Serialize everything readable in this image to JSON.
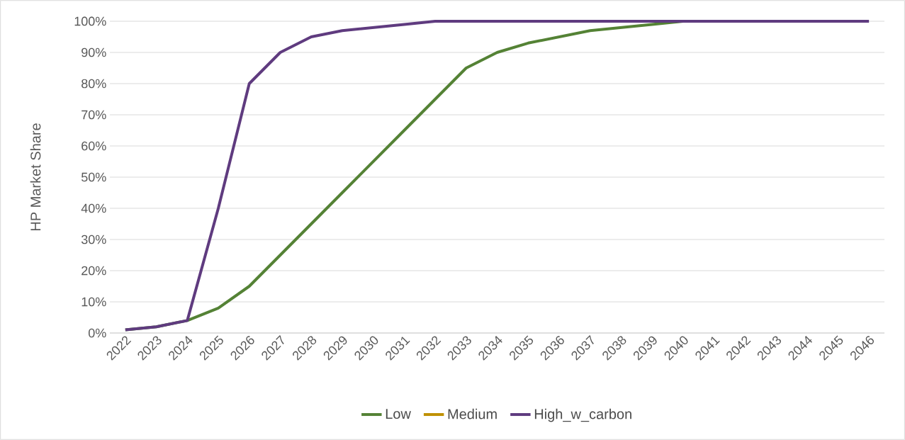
{
  "chart_data": {
    "type": "line",
    "ylabel": "HP Market Share",
    "categories": [
      "2022",
      "2023",
      "2024",
      "2025",
      "2026",
      "2027",
      "2028",
      "2029",
      "2030",
      "2031",
      "2032",
      "2033",
      "2034",
      "2035",
      "2036",
      "2037",
      "2038",
      "2039",
      "2040",
      "2041",
      "2042",
      "2043",
      "2044",
      "2045",
      "2046"
    ],
    "series": [
      {
        "name": "Low",
        "color": "#548235",
        "values": [
          1,
          2,
          4,
          8,
          15,
          25,
          35,
          45,
          55,
          65,
          75,
          85,
          90,
          93,
          95,
          97,
          98,
          99,
          100,
          100,
          null,
          null,
          null,
          null,
          null
        ]
      },
      {
        "name": "Medium",
        "color": "#bf9000",
        "values": [
          null,
          null,
          null,
          null,
          null,
          null,
          null,
          null,
          null,
          null,
          null,
          null,
          null,
          null,
          null,
          null,
          null,
          null,
          null,
          null,
          null,
          null,
          null,
          null,
          null
        ]
      },
      {
        "name": "High_w_carbon",
        "color": "#5f3b7f",
        "values": [
          1,
          2,
          4,
          40,
          80,
          90,
          95,
          97,
          98,
          99,
          100,
          100,
          100,
          100,
          100,
          100,
          100,
          100,
          100,
          100,
          100,
          100,
          100,
          100,
          100
        ]
      }
    ],
    "ylim": [
      0,
      100
    ],
    "yticks": [
      {
        "value": 0,
        "label": "0%"
      },
      {
        "value": 10,
        "label": "10%"
      },
      {
        "value": 20,
        "label": "20%"
      },
      {
        "value": 30,
        "label": "30%"
      },
      {
        "value": 40,
        "label": "40%"
      },
      {
        "value": 50,
        "label": "50%"
      },
      {
        "value": 60,
        "label": "60%"
      },
      {
        "value": 70,
        "label": "70%"
      },
      {
        "value": 80,
        "label": "80%"
      },
      {
        "value": 90,
        "label": "90%"
      },
      {
        "value": 100,
        "label": "100%"
      }
    ],
    "grid": "y",
    "legend": "bottom",
    "marker": "none",
    "line_style": "solid"
  }
}
